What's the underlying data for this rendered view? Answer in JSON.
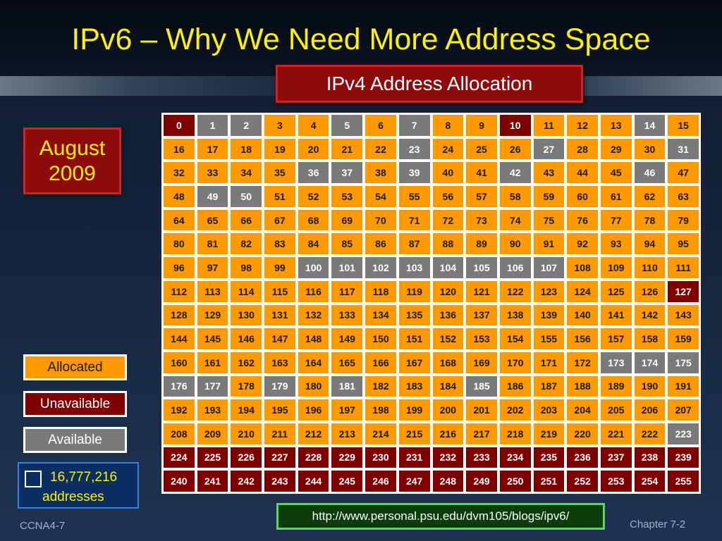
{
  "title": "IPv6 – Why We Need More Address Space",
  "subtitle": "IPv4 Address Allocation",
  "date": {
    "month": "August",
    "year": "2009"
  },
  "legend": {
    "allocated": "Allocated",
    "unavailable": "Unavailable",
    "available": "Available",
    "scale_count": "16,777,216",
    "scale_unit": "addresses"
  },
  "colors": {
    "allocated": "#ff9900",
    "unavailable": "#800000",
    "available": "#7a7a7a",
    "title": "#fff200"
  },
  "blocks": {
    "total": 256,
    "unavailable": [
      0,
      10,
      127,
      224,
      225,
      226,
      227,
      228,
      229,
      230,
      231,
      232,
      233,
      234,
      235,
      236,
      237,
      238,
      239,
      240,
      241,
      242,
      243,
      244,
      245,
      246,
      247,
      248,
      249,
      250,
      251,
      252,
      253,
      254,
      255
    ],
    "available": [
      1,
      2,
      5,
      7,
      14,
      23,
      27,
      31,
      36,
      37,
      39,
      42,
      46,
      49,
      50,
      100,
      101,
      102,
      103,
      104,
      105,
      106,
      107,
      173,
      174,
      175,
      176,
      177,
      179,
      181,
      185,
      223
    ]
  },
  "url": "http://www.personal.psu.edu/dvm105/blogs/ipv6/",
  "footer": {
    "left": "CCNA4-7",
    "right": "Chapter 7-2"
  }
}
